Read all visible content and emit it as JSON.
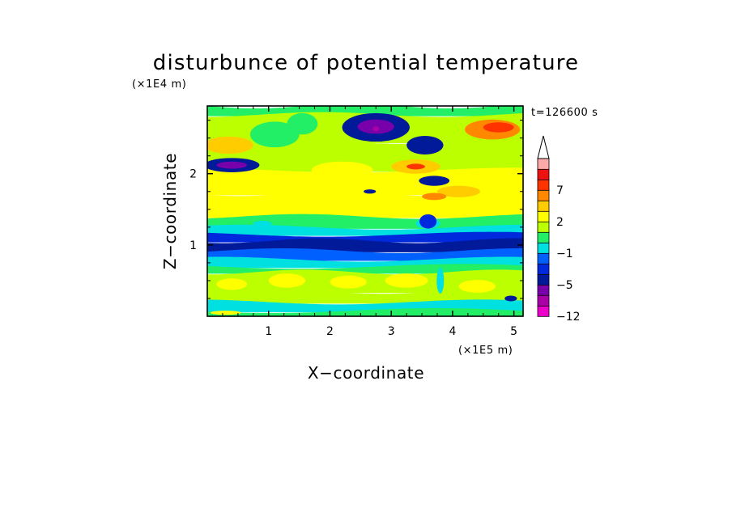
{
  "chart_data": {
    "type": "heatmap",
    "title": "disturbunce of potential temperature",
    "xlabel": "X−coordinate",
    "ylabel": "Z−coordinate",
    "x_unit": "(×1E5 m)",
    "y_unit": "(×1E4 m)",
    "time_label": "t=126600 s",
    "xlim": [
      0,
      5.15
    ],
    "ylim": [
      0,
      2.95
    ],
    "x_ticks": [
      1,
      2,
      3,
      4,
      5
    ],
    "x_tick_labels": [
      "1",
      "2",
      "3",
      "4",
      "5"
    ],
    "y_ticks": [
      1,
      2
    ],
    "y_tick_labels": [
      "1",
      "2"
    ],
    "grid": false,
    "colorbar": {
      "levels": [
        -12,
        -10,
        -8,
        -5,
        -4,
        -3,
        -1,
        0,
        1,
        2,
        4,
        5,
        7,
        8,
        9,
        12
      ],
      "tick_labels": [
        {
          "value": -12,
          "label": "−12"
        },
        {
          "value": -5,
          "label": "−5"
        },
        {
          "value": -1,
          "label": "−1"
        },
        {
          "value": 2,
          "label": "2"
        },
        {
          "value": 7,
          "label": "7"
        }
      ],
      "colors": [
        "#ee00cc",
        "#aa00aa",
        "#7700aa",
        "#001a99",
        "#0028dd",
        "#0060ff",
        "#00e0e0",
        "#22ee66",
        "#bbff00",
        "#ffff00",
        "#ffcc00",
        "#ff8800",
        "#ff3300",
        "#ee1111",
        "#ffaaaa"
      ],
      "extend": "max"
    },
    "bands": [
      {
        "z_range": [
          2.83,
          2.95
        ],
        "level": 0.5
      },
      {
        "z_range": [
          2.45,
          2.83
        ],
        "level": 1.5
      },
      {
        "z_range": [
          2.05,
          2.45
        ],
        "level": 1.2
      },
      {
        "z_range": [
          1.72,
          2.05
        ],
        "level": 2.8
      },
      {
        "z_range": [
          1.4,
          1.72
        ],
        "level": 2.2
      },
      {
        "z_range": [
          1.25,
          1.4
        ],
        "level": 0.6
      },
      {
        "z_range": [
          1.15,
          1.25
        ],
        "level": -0.5
      },
      {
        "z_range": [
          1.06,
          1.15
        ],
        "level": -3.5
      },
      {
        "z_range": [
          0.92,
          1.06
        ],
        "level": -4.5
      },
      {
        "z_range": [
          0.8,
          0.92
        ],
        "level": -2.8
      },
      {
        "z_range": [
          0.7,
          0.8
        ],
        "level": -0.6
      },
      {
        "z_range": [
          0.62,
          0.7
        ],
        "level": 0.5
      },
      {
        "z_range": [
          0.35,
          0.62
        ],
        "level": 1.5
      },
      {
        "z_range": [
          0.2,
          0.35
        ],
        "level": 1.2
      },
      {
        "z_range": [
          0.08,
          0.2
        ],
        "level": -0.5
      },
      {
        "z_range": [
          0,
          0.08
        ],
        "level": 0.8
      }
    ],
    "blobs": [
      {
        "x": 2.75,
        "z": 2.65,
        "rx": 0.55,
        "rz": 0.2,
        "level": -4.5
      },
      {
        "x": 2.75,
        "z": 2.66,
        "rx": 0.3,
        "rz": 0.1,
        "level": -5.5
      },
      {
        "x": 2.75,
        "z": 2.63,
        "rx": 0.05,
        "rz": 0.035,
        "level": -9
      },
      {
        "x": 3.55,
        "z": 2.4,
        "rx": 0.3,
        "rz": 0.13,
        "level": -4.5
      },
      {
        "x": 0.4,
        "z": 2.12,
        "rx": 0.45,
        "rz": 0.1,
        "level": -4.5
      },
      {
        "x": 0.4,
        "z": 2.12,
        "rx": 0.25,
        "rz": 0.05,
        "level": -5.5
      },
      {
        "x": 3.7,
        "z": 1.9,
        "rx": 0.25,
        "rz": 0.07,
        "level": -4.5
      },
      {
        "x": 2.65,
        "z": 1.75,
        "rx": 0.1,
        "rz": 0.03,
        "level": -4.5
      },
      {
        "x": 4.65,
        "z": 2.62,
        "rx": 0.45,
        "rz": 0.14,
        "level": 5
      },
      {
        "x": 4.75,
        "z": 2.65,
        "rx": 0.25,
        "rz": 0.07,
        "level": 7.5
      },
      {
        "x": 0.35,
        "z": 2.4,
        "rx": 0.4,
        "rz": 0.12,
        "level": 4.5
      },
      {
        "x": 3.4,
        "z": 2.1,
        "rx": 0.4,
        "rz": 0.1,
        "level": 4.5
      },
      {
        "x": 3.4,
        "z": 2.1,
        "rx": 0.15,
        "rz": 0.04,
        "level": 7.5
      },
      {
        "x": 2.2,
        "z": 2.05,
        "rx": 0.5,
        "rz": 0.12,
        "level": 3
      },
      {
        "x": 4.1,
        "z": 1.75,
        "rx": 0.35,
        "rz": 0.08,
        "level": 4.5
      },
      {
        "x": 3.7,
        "z": 1.68,
        "rx": 0.2,
        "rz": 0.05,
        "level": 5
      },
      {
        "x": 2.3,
        "z": 1.55,
        "rx": 0.8,
        "rz": 0.12,
        "level": 3
      },
      {
        "x": 1.1,
        "z": 2.55,
        "rx": 0.4,
        "rz": 0.18,
        "level": 0.5
      },
      {
        "x": 1.55,
        "z": 2.7,
        "rx": 0.25,
        "rz": 0.15,
        "level": 0.5
      },
      {
        "x": 0.9,
        "z": 1.3,
        "rx": 0.15,
        "rz": 0.04,
        "level": -0.5
      },
      {
        "x": 3.6,
        "z": 1.3,
        "rx": 0.2,
        "rz": 0.07,
        "level": -0.5
      },
      {
        "x": 3.6,
        "z": 1.33,
        "rx": 0.14,
        "rz": 0.1,
        "level": -3.5
      },
      {
        "x": 1.3,
        "z": 0.5,
        "rx": 0.3,
        "rz": 0.1,
        "level": 3
      },
      {
        "x": 2.3,
        "z": 0.48,
        "rx": 0.3,
        "rz": 0.09,
        "level": 3
      },
      {
        "x": 3.25,
        "z": 0.5,
        "rx": 0.35,
        "rz": 0.1,
        "level": 3
      },
      {
        "x": 4.4,
        "z": 0.42,
        "rx": 0.3,
        "rz": 0.09,
        "level": 3
      },
      {
        "x": 0.4,
        "z": 0.45,
        "rx": 0.25,
        "rz": 0.08,
        "level": 3
      },
      {
        "x": 3.8,
        "z": 0.5,
        "rx": 0.06,
        "rz": 0.18,
        "level": -0.5
      },
      {
        "x": 4.95,
        "z": 0.25,
        "rx": 0.1,
        "rz": 0.04,
        "level": -4.5
      },
      {
        "x": 0.3,
        "z": 0.05,
        "rx": 0.25,
        "rz": 0.03,
        "level": 3
      }
    ]
  }
}
